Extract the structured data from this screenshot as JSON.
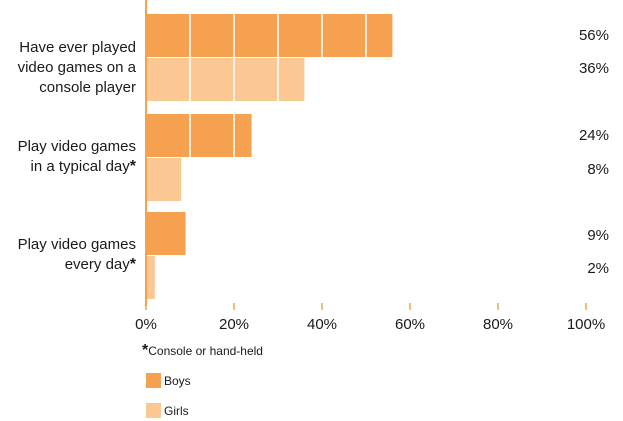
{
  "chart_data": {
    "type": "bar",
    "orientation": "horizontal",
    "categories": [
      {
        "lines": [
          "Have ever played",
          "video games on a",
          "console player"
        ],
        "star": false
      },
      {
        "lines": [
          "Play video games",
          "in a typical day"
        ],
        "star": true
      },
      {
        "lines": [
          "Play video games",
          "every day"
        ],
        "star": true
      }
    ],
    "series": [
      {
        "name": "Boys",
        "values": [
          56,
          24,
          9
        ],
        "labels": [
          "56%",
          "24%",
          "9%"
        ],
        "color": "#f6a14f"
      },
      {
        "name": "Girls",
        "values": [
          36,
          8,
          2
        ],
        "labels": [
          "36%",
          "8%",
          "2%"
        ],
        "color": "#fbc894"
      }
    ],
    "xlim": [
      0,
      100
    ],
    "xticks": [
      "0%",
      "20%",
      "40%",
      "60%",
      "80%",
      "100%"
    ],
    "segment_step": 10,
    "axis_color": "#f6a14f",
    "star_glyph": "*",
    "footnote": "Console or hand-held",
    "legend": [
      {
        "label": "Boys",
        "color": "#f6a14f"
      },
      {
        "label": "Girls",
        "color": "#fbc894"
      }
    ]
  }
}
